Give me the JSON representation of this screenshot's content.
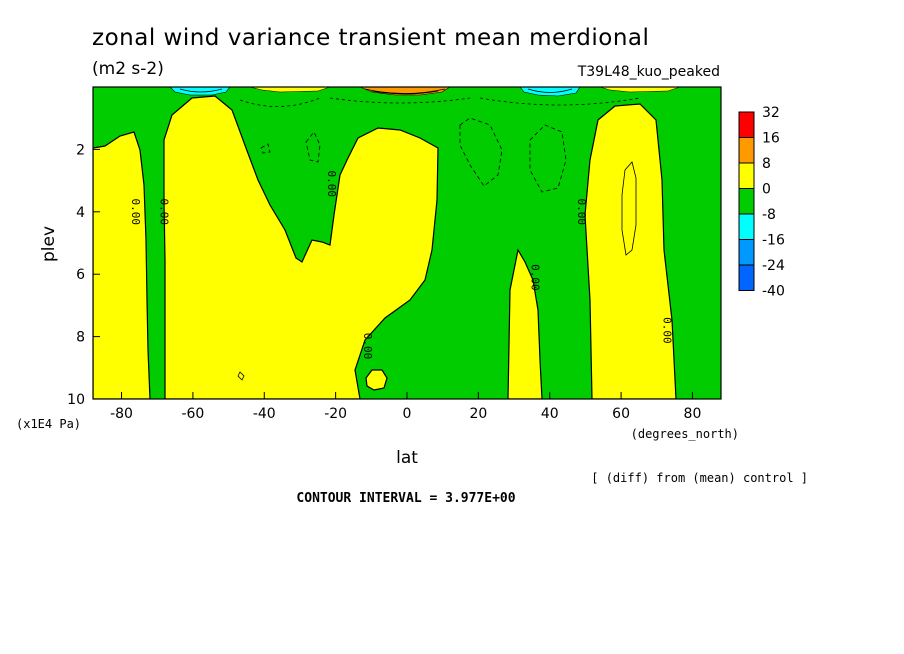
{
  "chart_data": {
    "type": "contour",
    "title": "zonal wind variance transient mean merdional",
    "units": "(m2 s-2)",
    "experiment": "T39L48_kuo_peaked",
    "xlabel": "lat",
    "xunits": "(degrees_north)",
    "ylabel": "plev",
    "yunits": "(x1E4 Pa)",
    "xlim": [
      -88,
      88
    ],
    "ylim": [
      10,
      0
    ],
    "x_ticks": [
      -80,
      -60,
      -40,
      -20,
      0,
      20,
      40,
      60,
      80
    ],
    "y_ticks": [
      2,
      4,
      6,
      8,
      10
    ],
    "contour_interval_text": "CONTOUR INTERVAL = 3.977E+00",
    "note": "[ (diff) from (mean) control ]",
    "contour_labels": [
      {
        "text": "0.00",
        "lat": -76,
        "plev": 4.0
      },
      {
        "text": "0.00",
        "lat": -68,
        "plev": 4.0
      },
      {
        "text": "0.00",
        "lat": -21,
        "plev": 3.1
      },
      {
        "text": "0.00",
        "lat": -11,
        "plev": 8.3
      },
      {
        "text": "0.00",
        "lat": 36,
        "plev": 6.1
      },
      {
        "text": "0.00",
        "lat": 49,
        "plev": 4.0
      },
      {
        "text": "0.00",
        "lat": 73,
        "plev": 7.8
      }
    ],
    "colorbar": {
      "levels": [
        "32",
        "16",
        "8",
        "0",
        "-8",
        "-16",
        "-24",
        "-40"
      ],
      "colors": [
        "#ff0000",
        "#ff9900",
        "#ffff00",
        "#00cc00",
        "#00ffff",
        "#0099ff",
        "#0066ff"
      ]
    }
  }
}
